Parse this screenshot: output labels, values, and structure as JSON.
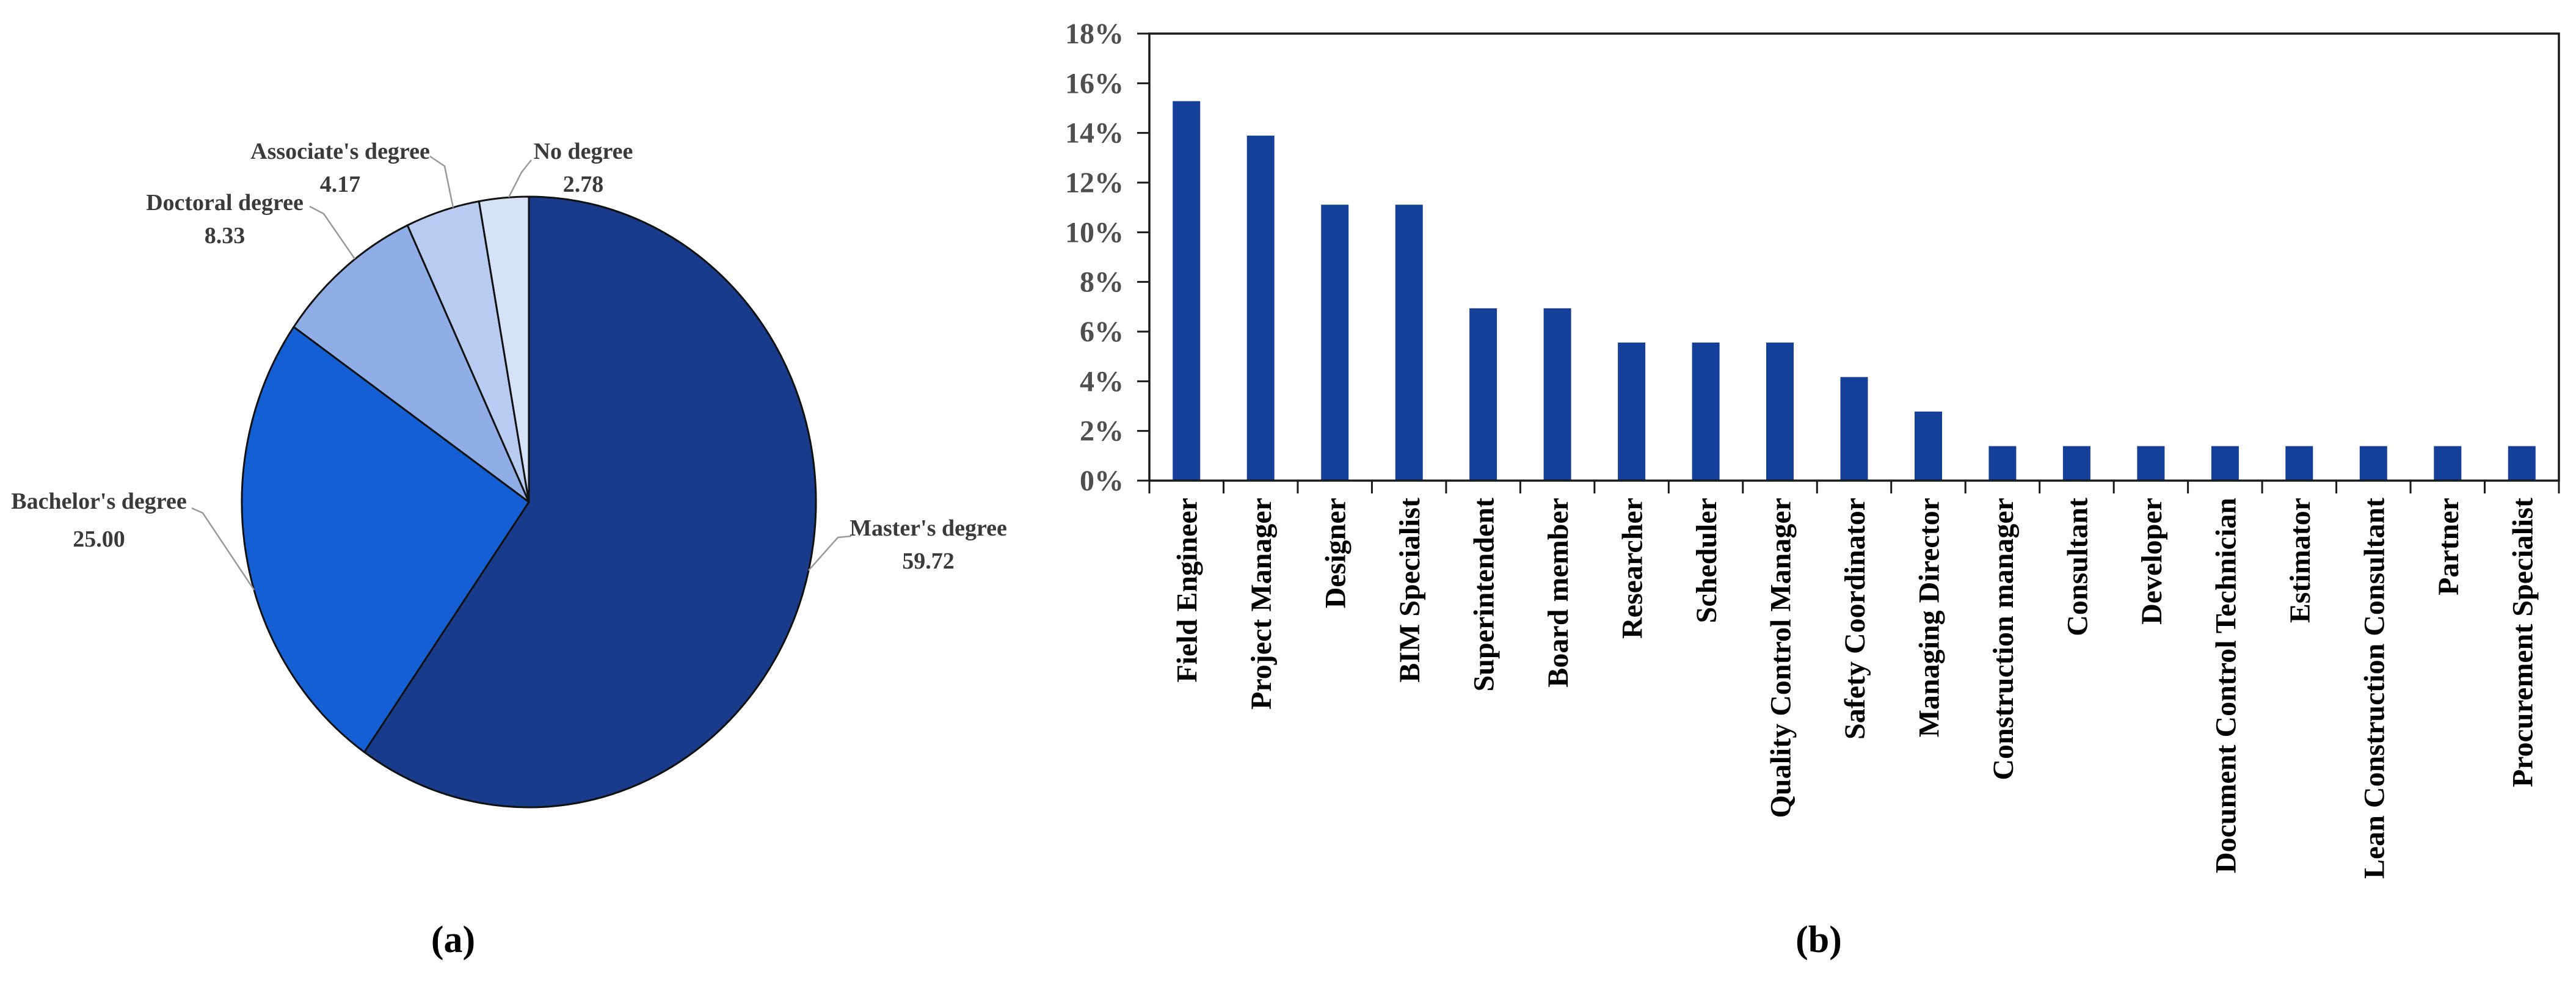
{
  "figure": {
    "caption_a": "(a)",
    "caption_b": "(b)"
  },
  "colors": {
    "bar_fill": "#14409A",
    "axis_line": "#1a1a1a",
    "y_tick_label": "#4f4f4f",
    "category_label": "#000000",
    "pie_label": "#3a3a3a",
    "leader_line": "#999999",
    "pie_outline": "#111111"
  },
  "chart_data": [
    {
      "type": "pie",
      "panel": "a",
      "start_angle": "top",
      "direction": "clockwise",
      "value_decimals": 2,
      "slices": [
        {
          "label": "Master's degree",
          "value": 59.72,
          "color": "#183B8C"
        },
        {
          "label": "Bachelor's degree",
          "value": 25.0,
          "color": "#155FD5"
        },
        {
          "label": "Doctoral degree",
          "value": 8.33,
          "color": "#8FAEE8"
        },
        {
          "label": "Associate's degree",
          "value": 4.17,
          "color": "#B8CCF2"
        },
        {
          "label": "No degree",
          "value": 2.78,
          "color": "#D6E2F8"
        }
      ]
    },
    {
      "type": "bar",
      "panel": "b",
      "categories": [
        "Field Engineer",
        "Project Manager",
        "Designer",
        "BIM Specialist",
        "Superintendent",
        "Board member",
        "Researcher",
        "Scheduler",
        "Quality Control Manager",
        "Safety Coordinator",
        "Managing Director",
        "Construction manager",
        "Consultant",
        "Developer",
        "Document Control Technician",
        "Estimator",
        "Lean Construction Consultant",
        "Partner",
        "Procurement Specialist"
      ],
      "values": [
        15.28,
        13.89,
        11.11,
        11.11,
        6.94,
        6.94,
        5.56,
        5.56,
        5.56,
        4.17,
        2.78,
        1.39,
        1.39,
        1.39,
        1.39,
        1.39,
        1.39,
        1.39,
        1.39
      ],
      "y_ticks": [
        "0%",
        "2%",
        "4%",
        "6%",
        "8%",
        "10%",
        "12%",
        "14%",
        "16%",
        "18%"
      ],
      "ylim": [
        0,
        18
      ],
      "grid": false,
      "legend": null
    }
  ]
}
